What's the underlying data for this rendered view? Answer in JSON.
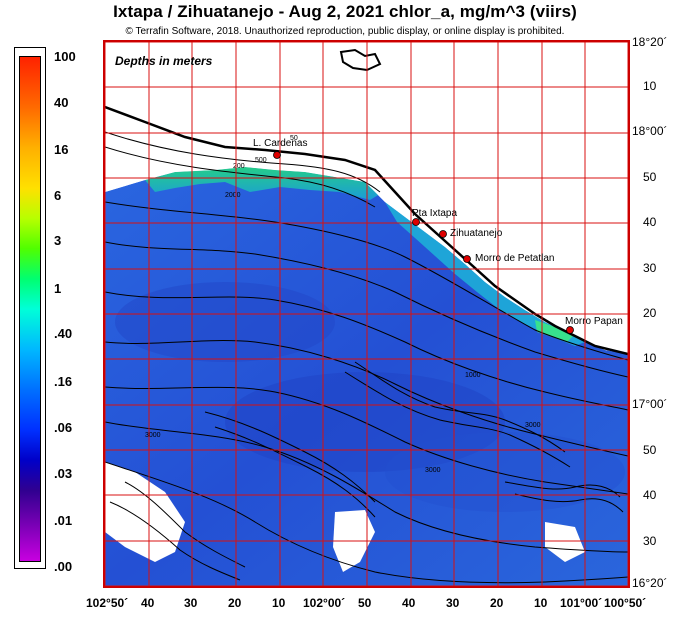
{
  "header": {
    "title": "Ixtapa / Zihuatanejo - Aug 2, 2021  chlor_a, mg/m^3 (viirs)",
    "subtitle": "© Terrafin Software,  2018.  Unauthorized reproduction, public display, or online display is prohibited."
  },
  "legend": {
    "labels": [
      "100",
      "40",
      "16",
      "6",
      "3",
      "1",
      ".40",
      ".16",
      ".06",
      ".03",
      ".01",
      ".00"
    ]
  },
  "map": {
    "depth_note": "Depths in meters",
    "places": [
      {
        "name": "L. Cardenas"
      },
      {
        "name": "Pta Ixtapa"
      },
      {
        "name": "Zihuatanejo"
      },
      {
        "name": "Morro de Petatlan"
      },
      {
        "name": "Morro Papan"
      }
    ],
    "contour_labels": [
      "1000",
      "2000",
      "3000",
      "3000",
      "3000",
      "500",
      "200",
      "50"
    ],
    "colors": {
      "frame": "#cc0000",
      "grid": "#d81010",
      "land": "#ffffff",
      "ocean_deep": "#2a56d8",
      "coastal_green": "#22d86a",
      "marker": "#dd0000"
    }
  },
  "axes": {
    "lat_labels": [
      "18°20´",
      "10",
      "18°00´",
      "50",
      "40",
      "30",
      "20",
      "10",
      "17°00´",
      "50",
      "40",
      "30",
      "16°20´"
    ],
    "lon_labels": [
      "102°50´",
      "40",
      "30",
      "20",
      "10",
      "102°00´",
      "50",
      "40",
      "30",
      "20",
      "10",
      "101°00´",
      "100°50´"
    ]
  }
}
